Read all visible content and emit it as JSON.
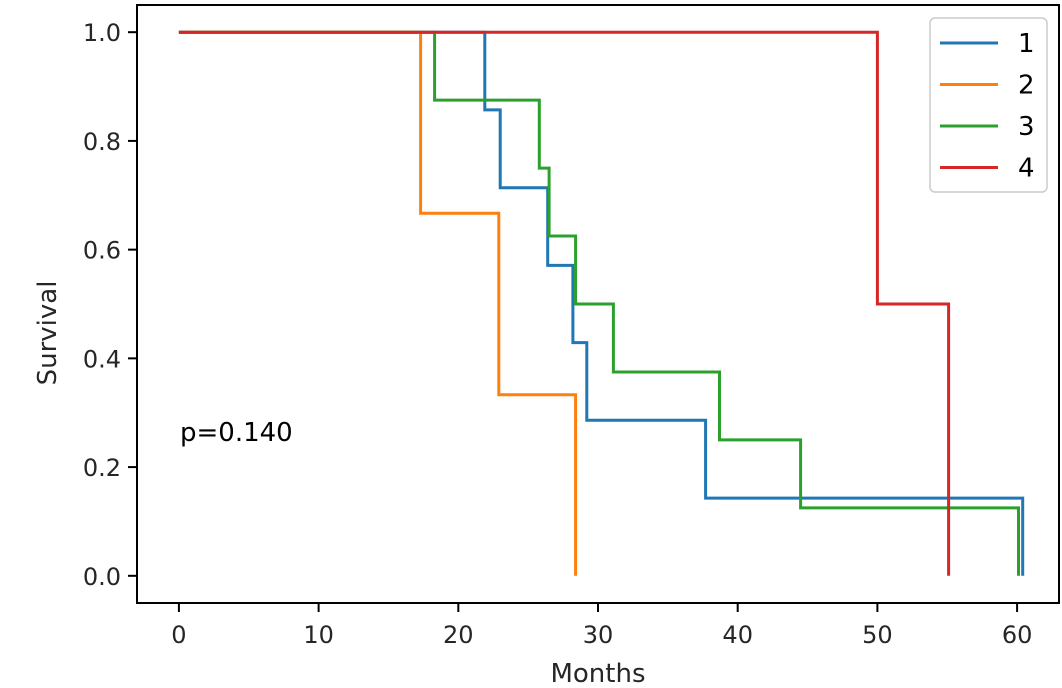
{
  "chart_data": {
    "type": "line",
    "step": true,
    "xlabel": "Months",
    "ylabel": "Survival",
    "xlim": [
      -3,
      63
    ],
    "ylim": [
      -0.05,
      1.05
    ],
    "xticks": [
      0,
      10,
      20,
      30,
      40,
      50,
      60
    ],
    "xtick_labels": [
      "0",
      "10",
      "20",
      "30",
      "40",
      "50",
      "60"
    ],
    "yticks": [
      0.0,
      0.2,
      0.4,
      0.6,
      0.8,
      1.0
    ],
    "ytick_labels": [
      "0.0",
      "0.2",
      "0.4",
      "0.6",
      "0.8",
      "1.0"
    ],
    "grid": false,
    "legend_position": "top-right",
    "annotation": "p=0.140",
    "series": [
      {
        "name": "1",
        "color": "#1f77b4",
        "x": [
          0,
          21.9,
          21.9,
          23.0,
          23.0,
          26.4,
          26.4,
          28.2,
          28.2,
          29.2,
          29.2,
          37.7,
          37.7,
          60.4,
          60.4
        ],
        "y": [
          1.0,
          1.0,
          0.857,
          0.857,
          0.714,
          0.714,
          0.571,
          0.571,
          0.429,
          0.429,
          0.286,
          0.286,
          0.143,
          0.143,
          0.0
        ]
      },
      {
        "name": "2",
        "color": "#ff7f0e",
        "x": [
          0,
          17.3,
          17.3,
          22.9,
          22.9,
          28.4,
          28.4
        ],
        "y": [
          1.0,
          1.0,
          0.667,
          0.667,
          0.333,
          0.333,
          0.0
        ]
      },
      {
        "name": "3",
        "color": "#2ca02c",
        "x": [
          0,
          18.3,
          18.3,
          25.8,
          25.8,
          26.5,
          26.5,
          28.4,
          28.4,
          31.1,
          31.1,
          38.7,
          38.7,
          44.5,
          44.5,
          60.1,
          60.1
        ],
        "y": [
          1.0,
          1.0,
          0.875,
          0.875,
          0.75,
          0.75,
          0.625,
          0.625,
          0.5,
          0.5,
          0.375,
          0.375,
          0.25,
          0.25,
          0.125,
          0.125,
          0.0
        ]
      },
      {
        "name": "4",
        "color": "#d62728",
        "x": [
          0,
          50.0,
          50.0,
          55.1,
          55.1
        ],
        "y": [
          1.0,
          1.0,
          0.5,
          0.5,
          0.0
        ]
      }
    ]
  }
}
